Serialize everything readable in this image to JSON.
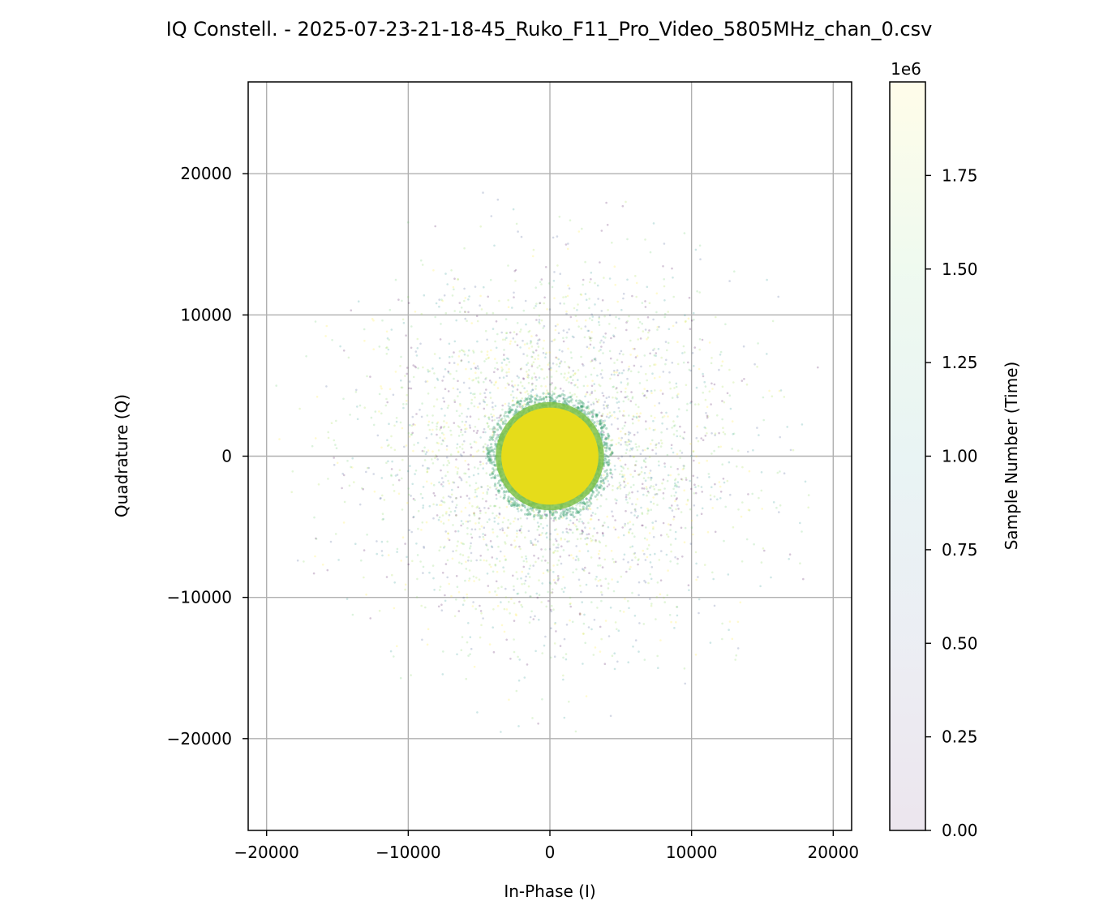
{
  "chart_data": {
    "type": "scatter",
    "title": "IQ Constell. - 2025-07-23-21-18-45_Ruko_F11_Pro_Video_5805MHz_chan_0.csv",
    "xlabel": "In-Phase (I)",
    "ylabel": "Quadrature (Q)",
    "xlim": [
      -21300,
      21300
    ],
    "ylim": [
      -26500,
      26500
    ],
    "xticks": [
      -20000,
      -10000,
      0,
      10000,
      20000
    ],
    "xtick_labels": [
      "−20000",
      "−10000",
      "0",
      "10000",
      "20000"
    ],
    "yticks": [
      -20000,
      -10000,
      0,
      10000,
      20000
    ],
    "ytick_labels": [
      "−20000",
      "−10000",
      "0",
      "10000",
      "20000"
    ],
    "grid": true,
    "aspect": "equal",
    "series": [
      {
        "kind": "core",
        "center": [
          0,
          0
        ],
        "dense_radius": 3900,
        "core_color": "#e6dc1a",
        "edge_color": "#3aa070",
        "color_by": "sample_number"
      },
      {
        "kind": "halo",
        "center": [
          0,
          0
        ],
        "sigma": 6500,
        "max_radius": 20000,
        "color_by": "sample_number"
      }
    ],
    "colorbar": {
      "label": "Sample Number (Time)",
      "offset_text": "1e6",
      "min": 0,
      "max": 2.0,
      "ticks": [
        0.0,
        0.25,
        0.5,
        0.75,
        1.0,
        1.25,
        1.5,
        1.75
      ],
      "tick_labels": [
        "0.00",
        "0.25",
        "0.50",
        "0.75",
        "1.00",
        "1.25",
        "1.50",
        "1.75"
      ],
      "colormap": "viridis",
      "alpha": 0.1
    }
  }
}
